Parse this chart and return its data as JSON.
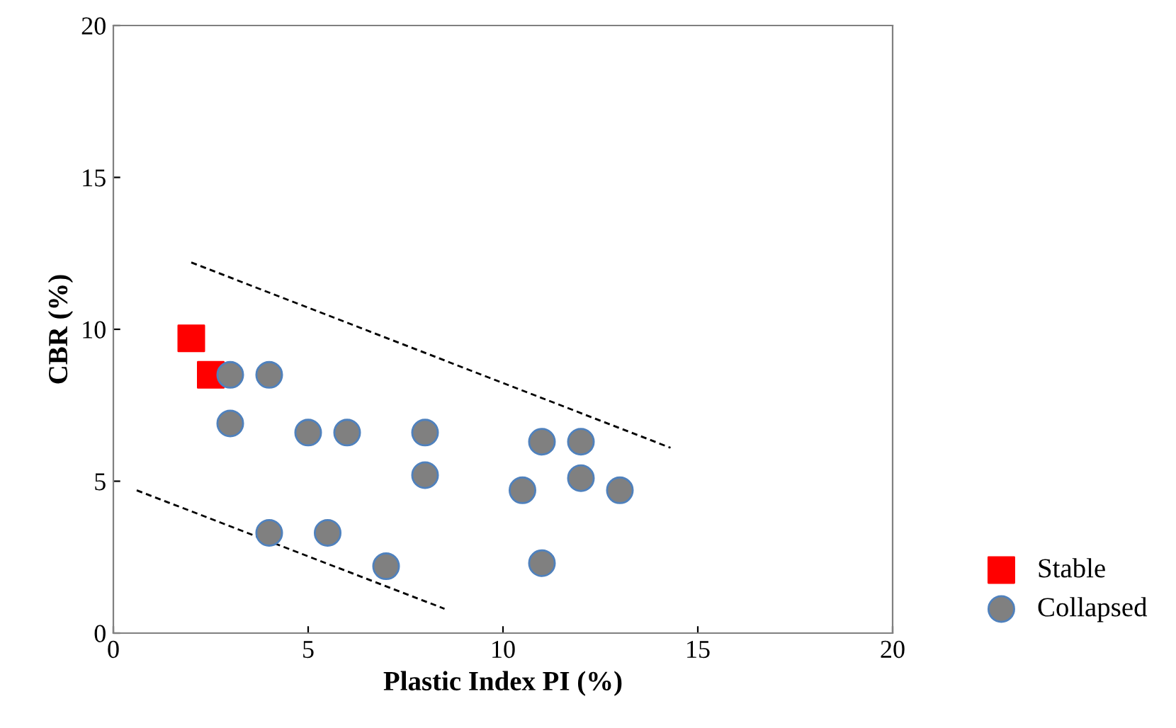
{
  "chart_data": {
    "type": "scatter",
    "xlabel": "Plastic Index PI (%)",
    "ylabel": "CBR (%)",
    "xlim": [
      0,
      20
    ],
    "ylim": [
      0,
      20
    ],
    "xticks": [
      0,
      5,
      10,
      15,
      20
    ],
    "yticks": [
      0,
      5,
      10,
      15,
      20
    ],
    "grid": false,
    "legend": "bottom right",
    "series": [
      {
        "name": "Stable",
        "color": "#ff0000",
        "marker": "square",
        "x": [
          2,
          2.5
        ],
        "values": [
          9.7,
          8.5
        ]
      },
      {
        "name": "Collapsed",
        "color": "#808080",
        "marker": "circle",
        "x": [
          3,
          4,
          3,
          5,
          6,
          8,
          8,
          11,
          12,
          10.5,
          12,
          13,
          4,
          5.5,
          7,
          11
        ],
        "values": [
          8.5,
          8.5,
          6.9,
          6.6,
          6.6,
          6.6,
          5.2,
          6.3,
          6.3,
          4.7,
          5.1,
          4.7,
          3.3,
          3.3,
          2.2,
          2.3
        ]
      },
      {
        "type": "line",
        "color": "#000000",
        "line_style": "dashed",
        "marker": "none",
        "x": [
          2,
          14.3
        ],
        "values": [
          12.2,
          6.1
        ]
      },
      {
        "type": "line",
        "color": "#000000",
        "line_style": "dashed",
        "marker": "none",
        "x": [
          0.6,
          8.5
        ],
        "values": [
          4.7,
          0.8
        ]
      }
    ]
  }
}
